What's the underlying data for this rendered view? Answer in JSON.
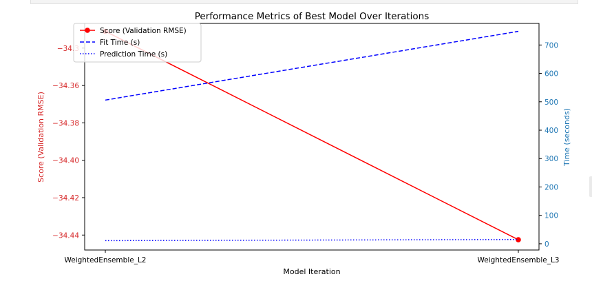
{
  "chart_data": {
    "type": "line",
    "title": "Performance Metrics of Best Model Over Iterations",
    "xlabel": "Model Iteration",
    "ylabel_left": "Score (Validation RMSE)",
    "ylabel_right": "Time (seconds)",
    "categories": [
      "WeightedEnsemble_L2",
      "WeightedEnsemble_L3"
    ],
    "left_axis": {
      "ylim": [
        -34.448,
        -34.3268
      ],
      "ticks": [
        -34.44,
        -34.42,
        -34.4,
        -34.38,
        -34.36,
        -34.34
      ],
      "tick_labels": [
        "−34.44",
        "−34.42",
        "−34.40",
        "−34.38",
        "−34.36",
        "−34.3"
      ]
    },
    "right_axis": {
      "ylim": [
        -22,
        776
      ],
      "ticks": [
        0,
        100,
        200,
        300,
        400,
        500,
        600,
        700
      ],
      "tick_labels": [
        "0",
        "100",
        "200",
        "300",
        "400",
        "500",
        "600",
        "700"
      ]
    },
    "series": [
      {
        "name": "Score (Validation RMSE)",
        "axis": "left",
        "color": "#ff0000",
        "style": "solid-marker",
        "values": [
          -34.331,
          -34.4425
        ]
      },
      {
        "name": "Fit Time (s)",
        "axis": "right",
        "color": "#0000ff",
        "style": "dashed",
        "values": [
          506,
          748
        ]
      },
      {
        "name": "Prediction Time (s)",
        "axis": "right",
        "color": "#0000ff",
        "style": "dotted",
        "values": [
          11,
          15
        ]
      }
    ],
    "legend_placement": "top-left",
    "grid": false,
    "colors": {
      "left_axis": "#d62728",
      "right_axis": "#1f77b4",
      "frame": "#000000"
    }
  }
}
